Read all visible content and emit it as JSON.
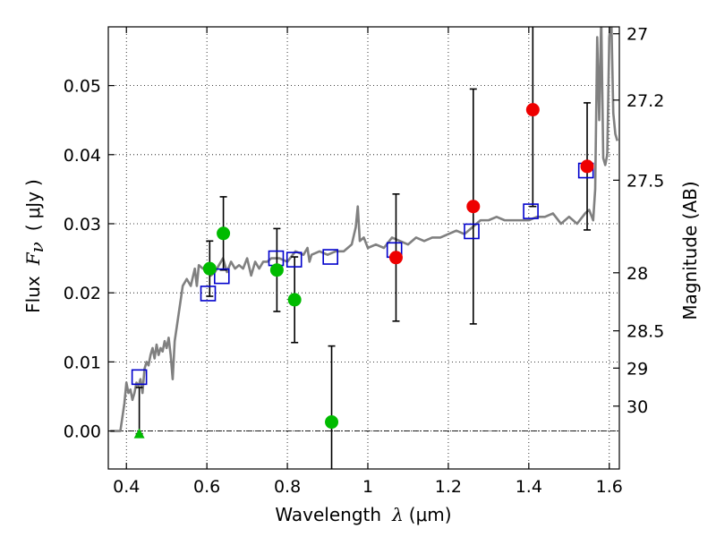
{
  "chart_data": {
    "type": "scatter",
    "xlabel": {
      "prefix": "Wavelength",
      "symbol": "λ",
      "unit_open": "(",
      "unit": "μm",
      "unit_close": ")"
    },
    "ylabel": {
      "prefix": "Flux",
      "symbol_main": "F",
      "symbol_sub": "ν",
      "unit_open": "(",
      "unit": "μJy",
      "unit_close": ")"
    },
    "ylabel_right": "Magnitude (AB)",
    "xlim": [
      0.355,
      1.625
    ],
    "ylim": [
      -0.0055,
      0.0585
    ],
    "x_ticks": [
      0.4,
      0.6,
      0.8,
      1.0,
      1.2,
      1.4,
      1.6
    ],
    "x_tick_labels": [
      "0.4",
      "0.6",
      "0.8",
      "1",
      "1.2",
      "1.4",
      "1.6"
    ],
    "y_ticks": [
      0.0,
      0.01,
      0.02,
      0.03,
      0.04,
      0.05
    ],
    "y_tick_labels": [
      "0.00",
      "0.01",
      "0.02",
      "0.03",
      "0.04",
      "0.05"
    ],
    "right_ticks": [
      {
        "label": "27",
        "flux": 0.0575
      },
      {
        "label": "27.2",
        "flux": 0.0479
      },
      {
        "label": "27.5",
        "flux": 0.0363
      },
      {
        "label": "28",
        "flux": 0.0229
      },
      {
        "label": "28.5",
        "flux": 0.0145
      },
      {
        "label": "29",
        "flux": 0.0091
      },
      {
        "label": "30",
        "flux": 0.0036
      }
    ],
    "grid": true,
    "colors": {
      "model": "#808080",
      "filter_flux": "#0000cc",
      "green_points": "#00bb00",
      "red_points": "#ee0000",
      "errorbar": "#000000"
    },
    "model_spectrum": {
      "x": [
        0.36,
        0.385,
        0.395,
        0.4,
        0.405,
        0.41,
        0.415,
        0.42,
        0.425,
        0.43,
        0.435,
        0.44,
        0.445,
        0.45,
        0.455,
        0.46,
        0.465,
        0.47,
        0.475,
        0.48,
        0.485,
        0.49,
        0.495,
        0.5,
        0.505,
        0.51,
        0.515,
        0.52,
        0.53,
        0.54,
        0.55,
        0.56,
        0.57,
        0.575,
        0.58,
        0.59,
        0.6,
        0.61,
        0.62,
        0.63,
        0.64,
        0.65,
        0.66,
        0.67,
        0.68,
        0.69,
        0.7,
        0.71,
        0.72,
        0.73,
        0.74,
        0.75,
        0.76,
        0.78,
        0.8,
        0.82,
        0.84,
        0.85,
        0.855,
        0.86,
        0.88,
        0.9,
        0.92,
        0.94,
        0.96,
        0.97,
        0.975,
        0.98,
        0.99,
        1.0,
        1.02,
        1.04,
        1.06,
        1.08,
        1.1,
        1.12,
        1.14,
        1.16,
        1.18,
        1.2,
        1.22,
        1.24,
        1.26,
        1.28,
        1.3,
        1.32,
        1.34,
        1.36,
        1.38,
        1.4,
        1.42,
        1.44,
        1.46,
        1.48,
        1.5,
        1.52,
        1.54,
        1.55,
        1.56,
        1.565,
        1.57,
        1.575,
        1.58,
        1.585,
        1.59,
        1.595,
        1.6,
        1.605,
        1.61,
        1.615,
        1.62
      ],
      "y": [
        0.0,
        0.0,
        0.004,
        0.007,
        0.0055,
        0.006,
        0.0045,
        0.0055,
        0.007,
        0.0065,
        0.0075,
        0.0055,
        0.009,
        0.01,
        0.0095,
        0.011,
        0.012,
        0.0105,
        0.0125,
        0.011,
        0.012,
        0.0115,
        0.013,
        0.012,
        0.0135,
        0.011,
        0.0075,
        0.013,
        0.017,
        0.021,
        0.022,
        0.021,
        0.0235,
        0.021,
        0.024,
        0.0235,
        0.024,
        0.0225,
        0.023,
        0.024,
        0.025,
        0.023,
        0.0245,
        0.0235,
        0.024,
        0.0235,
        0.025,
        0.0225,
        0.0245,
        0.0235,
        0.0245,
        0.0245,
        0.025,
        0.025,
        0.0245,
        0.026,
        0.0255,
        0.0265,
        0.0245,
        0.0255,
        0.026,
        0.0255,
        0.026,
        0.026,
        0.027,
        0.0295,
        0.0325,
        0.0275,
        0.028,
        0.0265,
        0.027,
        0.0265,
        0.028,
        0.0275,
        0.027,
        0.028,
        0.0275,
        0.028,
        0.028,
        0.0285,
        0.029,
        0.0285,
        0.0295,
        0.0305,
        0.0305,
        0.031,
        0.0305,
        0.0305,
        0.0305,
        0.0305,
        0.031,
        0.031,
        0.0315,
        0.03,
        0.031,
        0.03,
        0.0315,
        0.032,
        0.0305,
        0.035,
        0.057,
        0.045,
        0.06,
        0.0395,
        0.0385,
        0.04,
        0.057,
        0.06,
        0.046,
        0.043,
        0.042
      ]
    },
    "filter_flux": [
      {
        "x": 0.432,
        "y": 0.0078
      },
      {
        "x": 0.603,
        "y": 0.0199
      },
      {
        "x": 0.637,
        "y": 0.0224
      },
      {
        "x": 0.772,
        "y": 0.025
      },
      {
        "x": 0.817,
        "y": 0.0248
      },
      {
        "x": 0.907,
        "y": 0.0252
      },
      {
        "x": 1.066,
        "y": 0.0262
      },
      {
        "x": 1.258,
        "y": 0.0289
      },
      {
        "x": 1.405,
        "y": 0.0318
      },
      {
        "x": 1.542,
        "y": 0.0377
      }
    ],
    "green_points": [
      {
        "x": 0.607,
        "y": 0.0235,
        "err": 0.004
      },
      {
        "x": 0.641,
        "y": 0.0286,
        "err": 0.0053
      },
      {
        "x": 0.774,
        "y": 0.0233,
        "err": 0.006
      },
      {
        "x": 0.818,
        "y": 0.019,
        "err": 0.0062
      },
      {
        "x": 0.91,
        "y": 0.0013,
        "err": 0.011
      }
    ],
    "green_upper_limit": {
      "x": 0.432,
      "y": -0.0004,
      "top": 0.0063,
      "bottom": -0.0004
    },
    "red_points": [
      {
        "x": 1.07,
        "y": 0.0251,
        "err": 0.0092
      },
      {
        "x": 1.262,
        "y": 0.0325,
        "err": 0.017
      },
      {
        "x": 1.41,
        "y": 0.0465,
        "err": 0.014
      },
      {
        "x": 1.545,
        "y": 0.0383,
        "err": 0.0092
      }
    ]
  }
}
